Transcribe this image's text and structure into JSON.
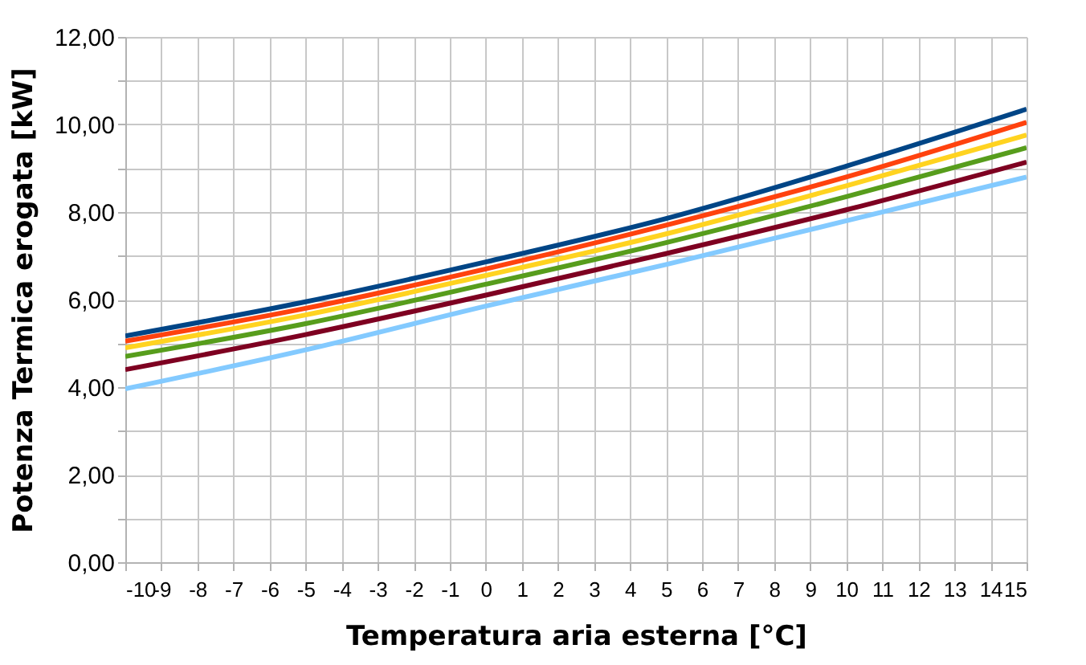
{
  "chart_data": {
    "type": "line",
    "xlabel": "Temperatura aria esterna [°C]",
    "ylabel": "Potenza Termica erogata [kW]",
    "x": [
      -10,
      -5,
      0,
      5,
      10,
      15
    ],
    "series": [
      {
        "color": "#004586",
        "values": [
          5.17,
          5.95,
          6.86,
          7.85,
          9.05,
          10.35
        ]
      },
      {
        "color": "#ff420e",
        "values": [
          5.05,
          5.8,
          6.7,
          7.7,
          8.8,
          10.05
        ]
      },
      {
        "color": "#ffd320",
        "values": [
          4.9,
          5.65,
          6.55,
          7.5,
          8.6,
          9.76
        ]
      },
      {
        "color": "#579d1c",
        "values": [
          4.7,
          5.45,
          6.35,
          7.3,
          8.35,
          9.47
        ]
      },
      {
        "color": "#7e0021",
        "values": [
          4.4,
          5.2,
          6.1,
          7.05,
          8.05,
          9.14
        ]
      },
      {
        "color": "#83caff",
        "values": [
          3.96,
          4.85,
          5.85,
          6.8,
          7.8,
          8.8
        ]
      }
    ],
    "xlim": [
      -10,
      15
    ],
    "xticks": [
      -10,
      -9,
      -8,
      -7,
      -6,
      -5,
      -4,
      -3,
      -2,
      -1,
      0,
      1,
      2,
      3,
      4,
      5,
      6,
      7,
      8,
      9,
      10,
      11,
      12,
      13,
      14,
      15
    ],
    "ylim": [
      0,
      12
    ],
    "yticks": [
      {
        "value": 0,
        "label": "0,00"
      },
      {
        "value": 1,
        "label": null
      },
      {
        "value": 2,
        "label": "2,00"
      },
      {
        "value": 3,
        "label": null
      },
      {
        "value": 4,
        "label": "4,00"
      },
      {
        "value": 5,
        "label": null
      },
      {
        "value": 6,
        "label": "6,00"
      },
      {
        "value": 7,
        "label": null
      },
      {
        "value": 8,
        "label": "8,00"
      },
      {
        "value": 9,
        "label": null
      },
      {
        "value": 10,
        "label": "10,00"
      },
      {
        "value": 11,
        "label": null
      },
      {
        "value": 12,
        "label": "12,00"
      }
    ],
    "grid": true,
    "legend": false,
    "marker": "none",
    "line_style": "solid"
  }
}
